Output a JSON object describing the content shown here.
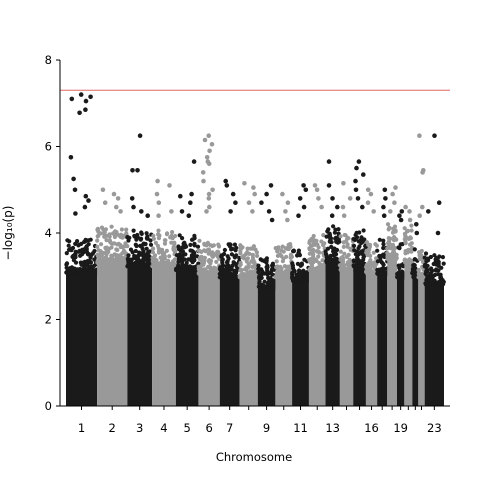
{
  "chart_data": {
    "type": "scatter",
    "title": "",
    "xlabel": "Chromosome",
    "ylabel": "−log₁₀(p)",
    "ylim": [
      0,
      8
    ],
    "yticks": [
      0,
      2,
      4,
      6,
      8
    ],
    "grid": false,
    "colors": {
      "odd": "#1a1a1a",
      "even": "#999999",
      "threshold": "#e06666"
    },
    "threshold": 7.3,
    "chromosomes": [
      {
        "name": "1",
        "start": 0,
        "end": 249,
        "label": "1",
        "band_top": 3.6,
        "hits": [
          7.2,
          7.15,
          7.1,
          7.05,
          6.85,
          6.78,
          5.75,
          5.25,
          5.0,
          4.85,
          4.75,
          4.6,
          4.45
        ]
      },
      {
        "name": "2",
        "start": 249,
        "end": 492,
        "label": "2",
        "band_top": 3.9,
        "hits": [
          5.0,
          4.9,
          4.8,
          4.7,
          4.6,
          4.5
        ]
      },
      {
        "name": "3",
        "start": 492,
        "end": 690,
        "label": "3",
        "band_top": 3.8,
        "hits": [
          6.25,
          5.45,
          5.45,
          4.8,
          4.6,
          4.5,
          4.4
        ]
      },
      {
        "name": "4",
        "start": 690,
        "end": 881,
        "label": "4",
        "band_top": 3.8,
        "hits": [
          5.2,
          5.1,
          4.9,
          4.7,
          4.5,
          4.4
        ]
      },
      {
        "name": "5",
        "start": 881,
        "end": 1062,
        "label": "5",
        "band_top": 3.7,
        "hits": [
          5.65,
          4.9,
          4.85,
          4.7,
          4.5,
          4.4
        ]
      },
      {
        "name": "6",
        "start": 1062,
        "end": 1233,
        "label": "6",
        "band_top": 3.6,
        "hits": [
          6.25,
          6.15,
          6.05,
          5.9,
          5.75,
          5.6,
          5.4,
          5.2,
          5.0,
          4.8,
          4.6,
          5.65,
          4.9,
          4.5
        ]
      },
      {
        "name": "7",
        "start": 1233,
        "end": 1392,
        "label": "7",
        "band_top": 3.5,
        "hits": [
          5.2,
          5.1,
          4.9,
          4.7,
          4.5
        ]
      },
      {
        "name": "8",
        "start": 1392,
        "end": 1538,
        "label": "",
        "band_top": 3.5,
        "hits": [
          5.15,
          5.05,
          4.9,
          4.7,
          4.5
        ]
      },
      {
        "name": "9",
        "start": 1538,
        "end": 1679,
        "label": "9",
        "band_top": 3.2,
        "hits": [
          5.1,
          4.9,
          4.7,
          4.5,
          4.3
        ]
      },
      {
        "name": "10",
        "start": 1679,
        "end": 1813,
        "label": "",
        "band_top": 3.5,
        "hits": [
          4.9,
          4.7,
          4.5,
          4.3
        ]
      },
      {
        "name": "11",
        "start": 1813,
        "end": 1948,
        "label": "11",
        "band_top": 3.4,
        "hits": [
          5.1,
          5.0,
          4.8,
          4.6,
          4.4
        ]
      },
      {
        "name": "12",
        "start": 1948,
        "end": 2081,
        "label": "",
        "band_top": 3.7,
        "hits": [
          5.1,
          5.0,
          4.8,
          4.6
        ]
      },
      {
        "name": "13",
        "start": 2081,
        "end": 2196,
        "label": "13",
        "band_top": 3.9,
        "hits": [
          5.65,
          5.1,
          4.8,
          4.6,
          4.4
        ]
      },
      {
        "name": "14",
        "start": 2196,
        "end": 2303,
        "label": "",
        "band_top": 3.7,
        "hits": [
          5.15,
          4.8,
          4.6,
          4.4
        ]
      },
      {
        "name": "15",
        "start": 2303,
        "end": 2405,
        "label": "",
        "band_top": 3.8,
        "hits": [
          5.65,
          5.5,
          5.35,
          5.2,
          5.0,
          4.8,
          4.6
        ]
      },
      {
        "name": "16",
        "start": 2405,
        "end": 2495,
        "label": "16",
        "band_top": 3.6,
        "hits": [
          5.0,
          4.9,
          4.7,
          4.5
        ]
      },
      {
        "name": "17",
        "start": 2495,
        "end": 2576,
        "label": "",
        "band_top": 3.6,
        "hits": [
          5.0,
          4.8,
          4.6,
          4.4
        ]
      },
      {
        "name": "18",
        "start": 2576,
        "end": 2654,
        "label": "",
        "band_top": 4.0,
        "hits": [
          5.05,
          4.9,
          4.7,
          4.5
        ]
      },
      {
        "name": "19",
        "start": 2654,
        "end": 2713,
        "label": "19",
        "band_top": 3.5,
        "hits": [
          4.5,
          4.4,
          4.3
        ]
      },
      {
        "name": "20",
        "start": 2713,
        "end": 2777,
        "label": "",
        "band_top": 3.9,
        "hits": [
          4.6,
          4.5,
          4.3
        ]
      },
      {
        "name": "21",
        "start": 2777,
        "end": 2825,
        "label": "",
        "band_top": 3.5,
        "hits": [
          4.2,
          4.0
        ]
      },
      {
        "name": "22",
        "start": 2825,
        "end": 2876,
        "label": "",
        "band_top": 3.5,
        "hits": [
          6.25,
          5.45,
          5.4,
          4.6,
          4.4
        ]
      },
      {
        "name": "23",
        "start": 2876,
        "end": 3031,
        "label": "23",
        "band_top": 3.3,
        "hits": [
          6.25,
          4.7,
          4.5,
          4.0
        ]
      }
    ]
  }
}
